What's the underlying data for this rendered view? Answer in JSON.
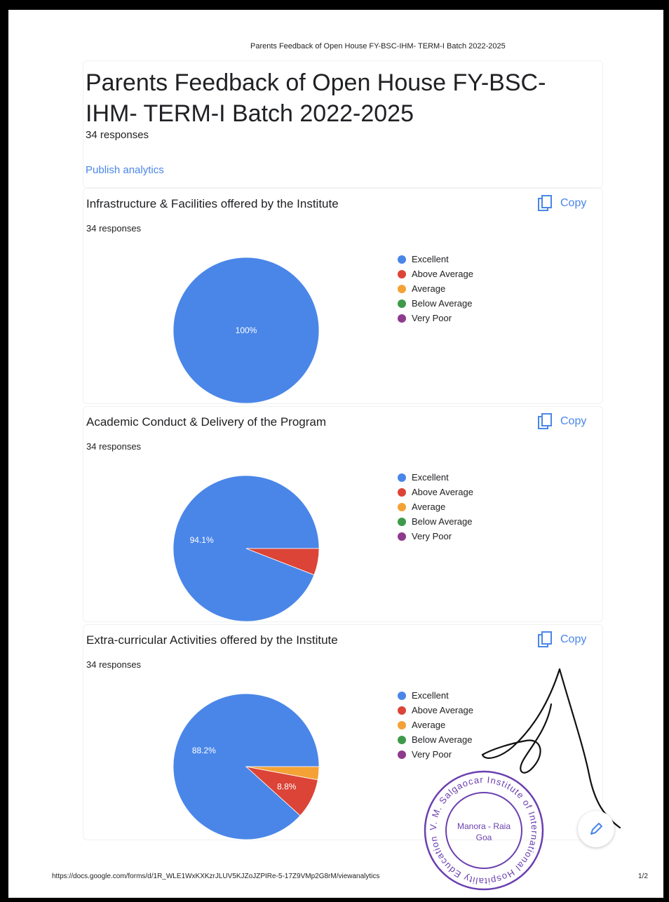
{
  "print_header": "Parents Feedback of Open House FY-BSC-IHM- TERM-I Batch 2022-2025",
  "form": {
    "title": "Parents Feedback of Open House FY-BSC-IHM- TERM-I Batch 2022-2025",
    "responses": "34 responses",
    "publish_label": "Publish analytics"
  },
  "copy_label": "Copy",
  "legend_labels": [
    "Excellent",
    "Above Average",
    "Average",
    "Below Average",
    "Very Poor"
  ],
  "colors": {
    "excellent": "#4a86e8",
    "above_average": "#db4437",
    "average": "#f4a236",
    "below_average": "#3e9a4a",
    "very_poor": "#8e3a8e",
    "link": "#4a86e8",
    "stamp": "#6a3fb0"
  },
  "chart_data": [
    {
      "type": "pie",
      "title": "Infrastructure & Facilities offered by the Institute",
      "responses": "34 responses",
      "categories": [
        "Excellent",
        "Above Average",
        "Average",
        "Below Average",
        "Very Poor"
      ],
      "values": [
        100,
        0,
        0,
        0,
        0
      ],
      "labels": [
        "100%",
        "",
        "",
        "",
        ""
      ],
      "legend_position": "right"
    },
    {
      "type": "pie",
      "title": "Academic Conduct & Delivery of the Program",
      "responses": "34 responses",
      "categories": [
        "Excellent",
        "Above Average",
        "Average",
        "Below Average",
        "Very Poor"
      ],
      "values": [
        94.1,
        5.9,
        0,
        0,
        0
      ],
      "labels": [
        "94.1%",
        "",
        "",
        "",
        ""
      ],
      "legend_position": "right"
    },
    {
      "type": "pie",
      "title": "Extra-curricular Activities offered by the Institute",
      "responses": "34 responses",
      "categories": [
        "Excellent",
        "Above Average",
        "Average",
        "Below Average",
        "Very Poor"
      ],
      "values": [
        88.2,
        8.8,
        2.9,
        0,
        0
      ],
      "labels": [
        "88.2%",
        "8.8%",
        "",
        "",
        ""
      ],
      "legend_position": "right"
    }
  ],
  "stamp": {
    "outer_text": "V. M. Salgaocar Institute of International Hospitality Education",
    "inner_line1": "Manora - Raia",
    "inner_line2": "Goa"
  },
  "footer": {
    "url": "https://docs.google.com/forms/d/1R_WLE1WxKXKzrJLUV5KJZoJZPIRe-5-17Z9VMp2G8rM/viewanalytics",
    "page": "1/2"
  }
}
